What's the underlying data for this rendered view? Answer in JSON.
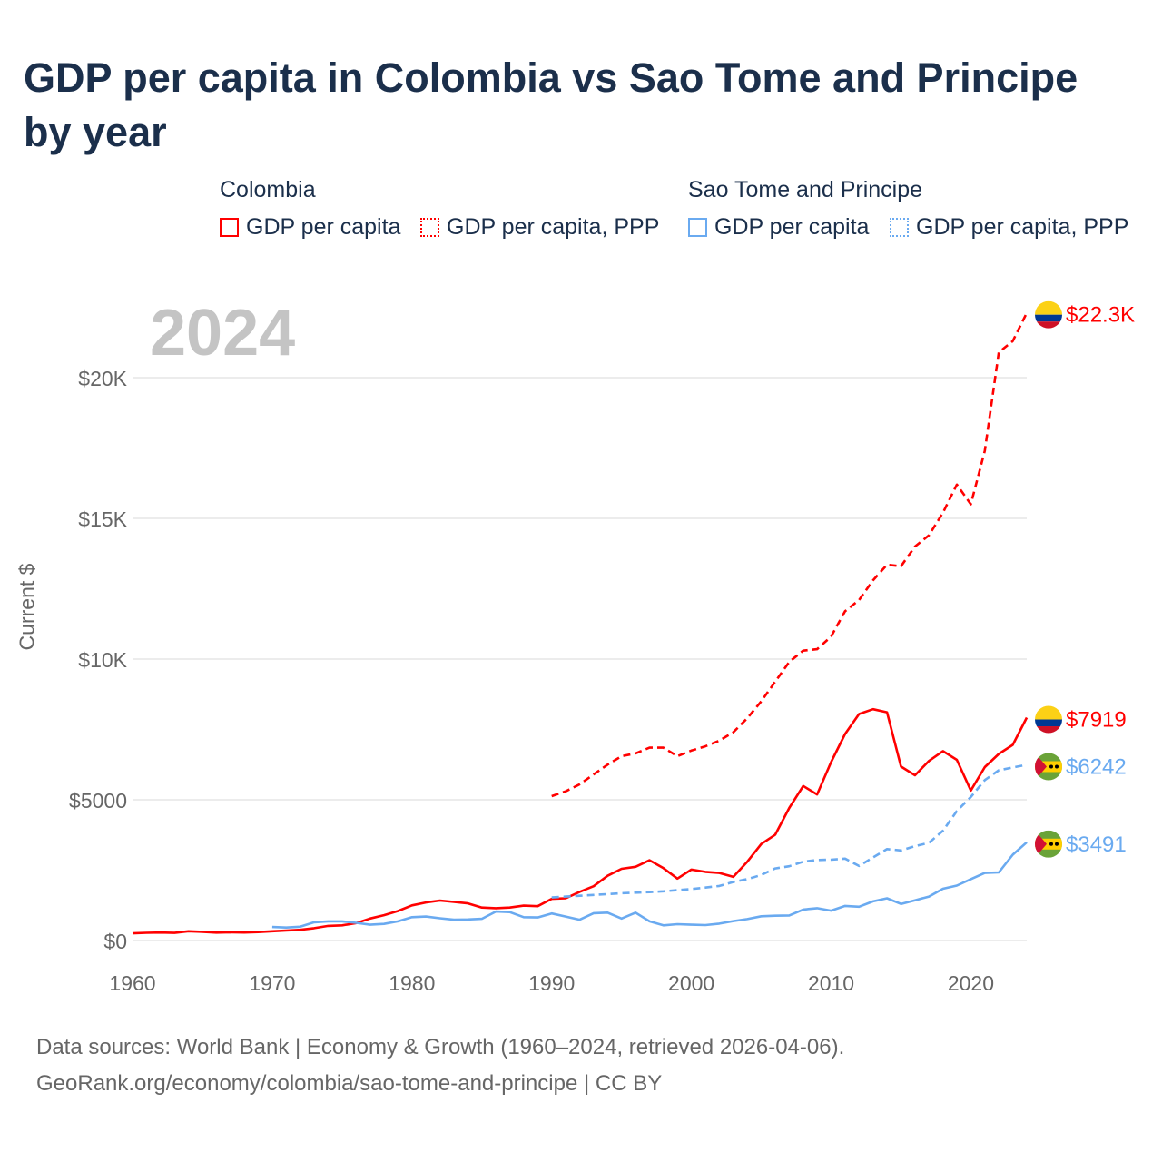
{
  "chart_data": {
    "type": "line",
    "title": "GDP per capita in Colombia vs Sao Tome and Principe by year",
    "ylabel": "Current $",
    "xlabel": "",
    "year_watermark": "2024",
    "xlim": [
      1960,
      2024
    ],
    "ylim": [
      0,
      22500
    ],
    "x_ticks": [
      1960,
      1970,
      1980,
      1990,
      2000,
      2010,
      2020
    ],
    "y_ticks": [
      {
        "value": 0,
        "label": "$0"
      },
      {
        "value": 5000,
        "label": "$5000"
      },
      {
        "value": 10000,
        "label": "$10K"
      },
      {
        "value": 15000,
        "label": "$15K"
      },
      {
        "value": 20000,
        "label": "$20K"
      }
    ],
    "grid": true,
    "legend": {
      "placement": "top",
      "groups": [
        {
          "country": "Colombia",
          "items": [
            "GDP per capita",
            "GDP per capita, PPP"
          ]
        },
        {
          "country": "Sao Tome and Principe",
          "items": [
            "GDP per capita",
            "GDP per capita, PPP"
          ]
        }
      ]
    },
    "series": [
      {
        "name": "Colombia GDP per capita",
        "color": "#ff0000",
        "dash": false,
        "end_label": "$7919",
        "flag": "colombia",
        "start_year": 1960,
        "values": [
          255,
          275,
          285,
          270,
          330,
          310,
          280,
          290,
          285,
          300,
          330,
          355,
          380,
          440,
          520,
          540,
          620,
          780,
          900,
          1050,
          1250,
          1350,
          1420,
          1370,
          1320,
          1170,
          1150,
          1170,
          1240,
          1220,
          1480,
          1500,
          1730,
          1930,
          2300,
          2550,
          2620,
          2850,
          2570,
          2200,
          2520,
          2440,
          2400,
          2260,
          2800,
          3430,
          3760,
          4710,
          5490,
          5190,
          6340,
          7340,
          8050,
          8220,
          8110,
          6180,
          5870,
          6380,
          6730,
          6420,
          5330,
          6160,
          6630,
          6950,
          7919
        ]
      },
      {
        "name": "Colombia GDP per capita, PPP",
        "color": "#ff0000",
        "dash": true,
        "end_label": "$22.3K",
        "flag": "colombia",
        "start_year": 1990,
        "values": [
          5130,
          5300,
          5550,
          5900,
          6250,
          6550,
          6650,
          6850,
          6850,
          6550,
          6750,
          6900,
          7100,
          7400,
          7900,
          8500,
          9200,
          9900,
          10300,
          10350,
          10800,
          11700,
          12100,
          12800,
          13350,
          13300,
          14000,
          14400,
          15200,
          16200,
          15500,
          17400,
          20900,
          21300,
          22300
        ]
      },
      {
        "name": "Sao Tome and Principe GDP per capita",
        "color": "#6aaaf0",
        "dash": false,
        "end_label": "$3491",
        "flag": "sao-tome",
        "start_year": 1970,
        "values": [
          480,
          460,
          490,
          650,
          680,
          680,
          630,
          560,
          590,
          680,
          830,
          850,
          790,
          740,
          750,
          770,
          1030,
          1010,
          830,
          820,
          960,
          850,
          740,
          970,
          990,
          780,
          990,
          680,
          540,
          580,
          560,
          550,
          600,
          690,
          760,
          860,
          880,
          890,
          1100,
          1150,
          1060,
          1230,
          1200,
          1390,
          1500,
          1300,
          1430,
          1560,
          1840,
          1950,
          2180,
          2400,
          2420,
          3050,
          3491
        ]
      },
      {
        "name": "Sao Tome and Principe GDP per capita, PPP",
        "color": "#6aaaf0",
        "dash": true,
        "end_label": "$6242",
        "flag": "sao-tome",
        "start_year": 1990,
        "values": [
          1530,
          1560,
          1590,
          1620,
          1650,
          1680,
          1700,
          1720,
          1750,
          1790,
          1830,
          1880,
          1940,
          2080,
          2180,
          2330,
          2560,
          2640,
          2800,
          2860,
          2870,
          2910,
          2650,
          2950,
          3250,
          3200,
          3350,
          3470,
          3900,
          4600,
          5100,
          5700,
          6050,
          6150,
          6242
        ]
      }
    ]
  },
  "footer": {
    "line1": "Data sources: World Bank | Economy & Growth (1960–2024, retrieved 2026-04-06).",
    "line2": "GeoRank.org/economy/colombia/sao-tome-and-principe | CC BY"
  }
}
